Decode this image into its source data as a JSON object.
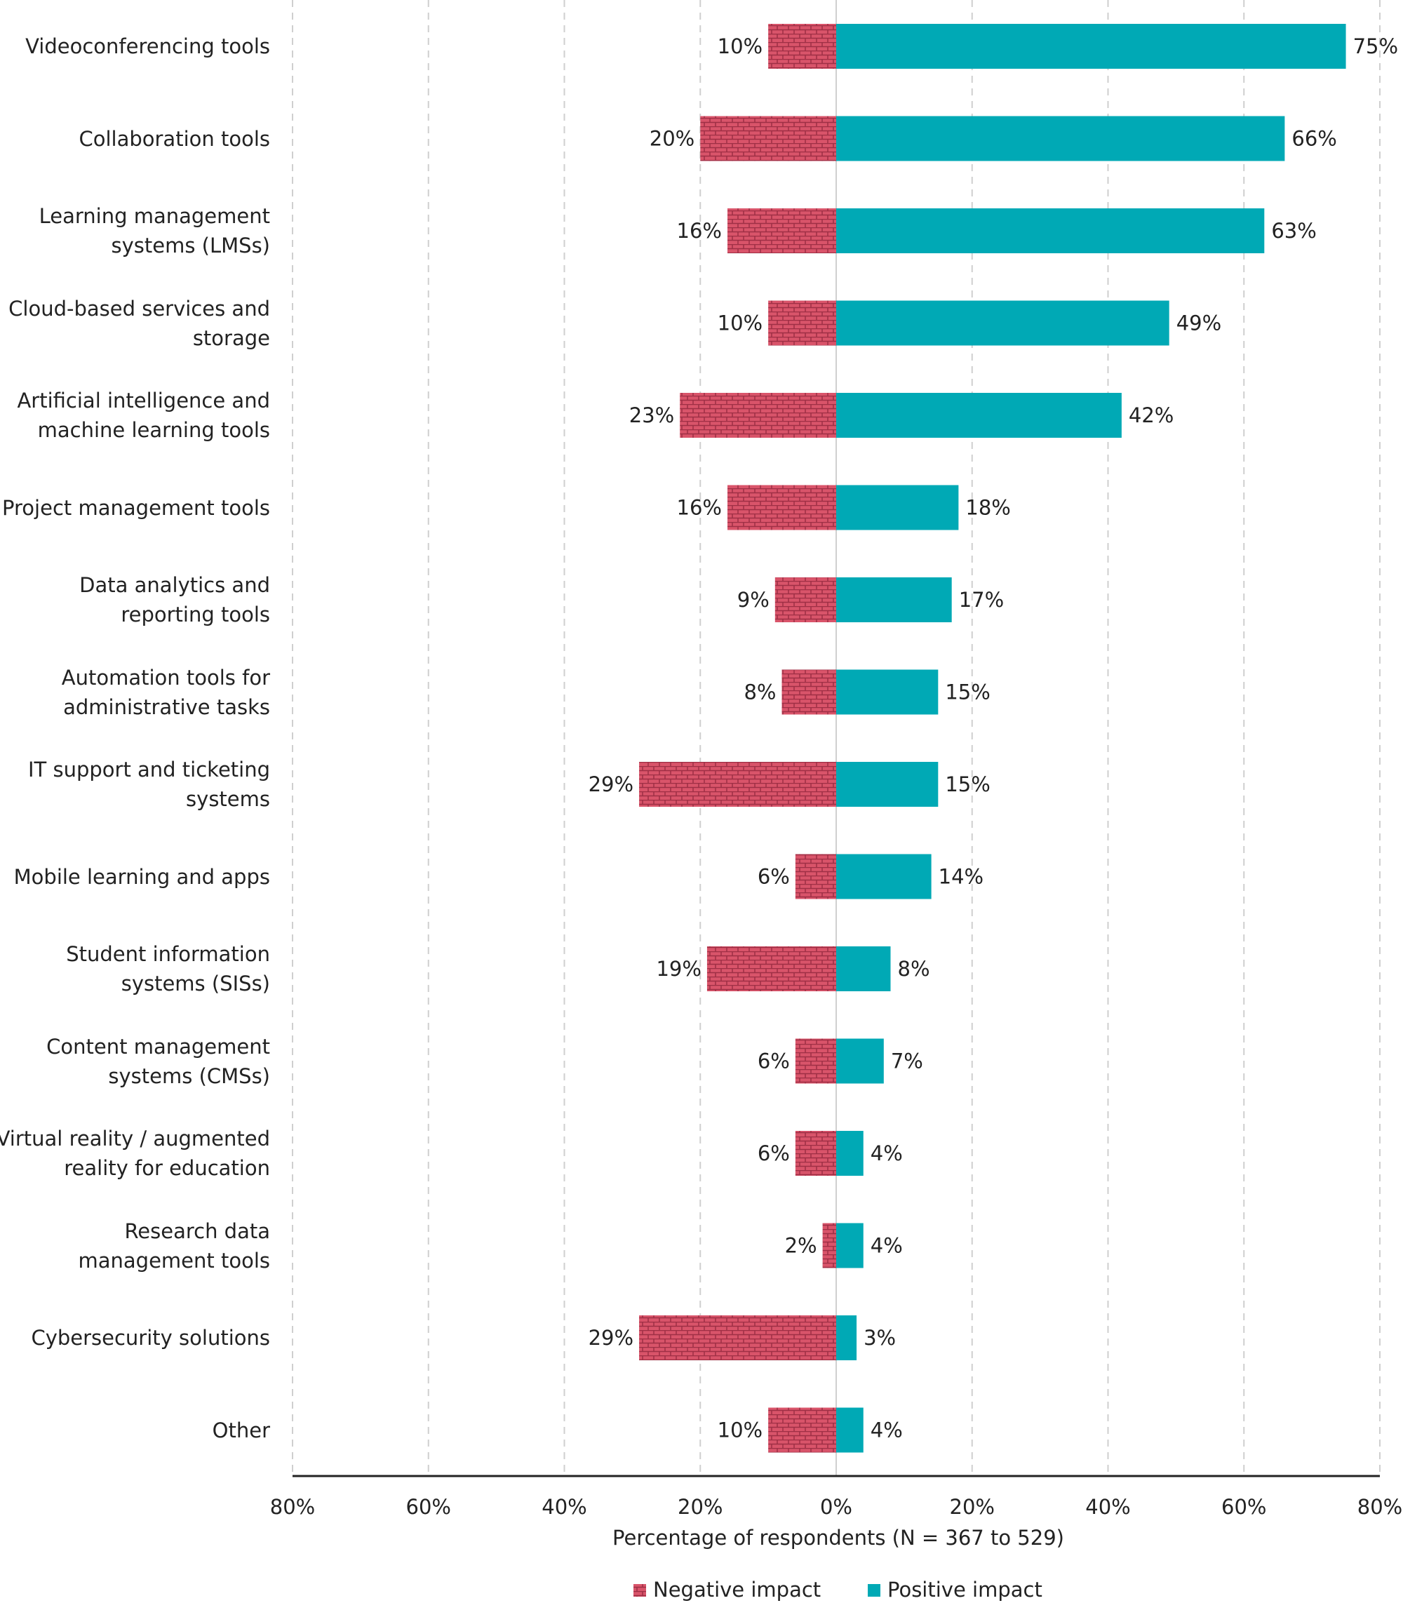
{
  "chart_data": {
    "type": "diverging-bar",
    "categories": [
      "Videoconferencing tools",
      "Collaboration tools",
      "Learning management systems (LMSs)",
      "Cloud-based services and storage",
      "Artificial intelligence and machine learning tools",
      "Project management tools",
      "Data analytics and reporting tools",
      "Automation tools for administrative tasks",
      "IT support and ticketing systems",
      "Mobile learning and apps",
      "Student information systems (SISs)",
      "Content management systems (CMSs)",
      "Virtual reality / augmented reality for education",
      "Research data management tools",
      "Cybersecurity solutions",
      "Other"
    ],
    "series": [
      {
        "name": "Negative impact",
        "color": "#d9546a",
        "pattern": "brick",
        "values": [
          -10,
          -20,
          -16,
          -10,
          -23,
          -16,
          -9,
          -8,
          -29,
          -6,
          -19,
          -6,
          -6,
          -2,
          -29,
          -10
        ],
        "value_labels": [
          "10%",
          "20%",
          "16%",
          "10%",
          "23%",
          "16%",
          "9%",
          "8%",
          "29%",
          "6%",
          "19%",
          "6%",
          "6%",
          "2%",
          "29%",
          "10%"
        ]
      },
      {
        "name": "Positive impact",
        "color": "#00a9b5",
        "values": [
          75,
          66,
          63,
          49,
          42,
          18,
          17,
          15,
          15,
          14,
          8,
          7,
          4,
          4,
          3,
          4
        ],
        "value_labels": [
          "75%",
          "66%",
          "63%",
          "49%",
          "42%",
          "18%",
          "17%",
          "15%",
          "15%",
          "14%",
          "8%",
          "7%",
          "4%",
          "4%",
          "3%",
          "4%"
        ]
      }
    ],
    "xlabel": "Percentage of respondents (N = 367 to 529)",
    "xlim": [
      -80,
      80
    ],
    "xticks": [
      {
        "value": -80,
        "label": "80%"
      },
      {
        "value": -60,
        "label": "60%"
      },
      {
        "value": -40,
        "label": "40%"
      },
      {
        "value": -20,
        "label": "20%"
      },
      {
        "value": 0,
        "label": "0%"
      },
      {
        "value": 20,
        "label": "20%"
      },
      {
        "value": 40,
        "label": "40%"
      },
      {
        "value": 60,
        "label": "60%"
      },
      {
        "value": 80,
        "label": "80%"
      }
    ],
    "grid": true,
    "legend": "bottom"
  }
}
